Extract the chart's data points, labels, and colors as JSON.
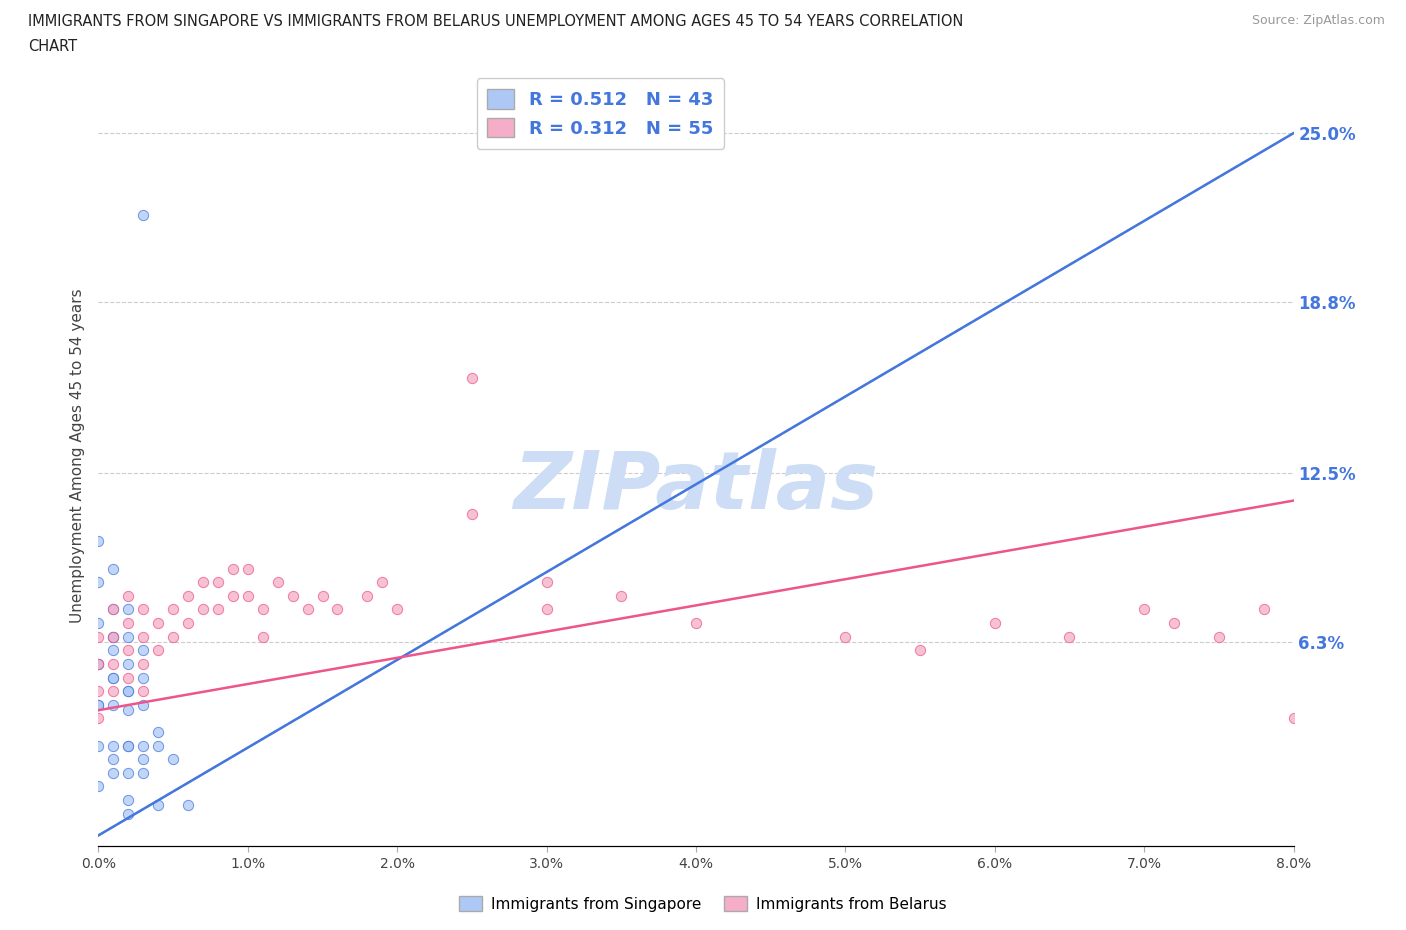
{
  "title_line1": "IMMIGRANTS FROM SINGAPORE VS IMMIGRANTS FROM BELARUS UNEMPLOYMENT AMONG AGES 45 TO 54 YEARS CORRELATION",
  "title_line2": "CHART",
  "source": "Source: ZipAtlas.com",
  "ylabel": "Unemployment Among Ages 45 to 54 years",
  "legend_label1": "Immigrants from Singapore",
  "legend_label2": "Immigrants from Belarus",
  "r1": 0.512,
  "n1": 43,
  "r2": 0.312,
  "n2": 55,
  "color1": "#adc8f5",
  "color2": "#f5adc8",
  "trendline1_color": "#4477dd",
  "trendline2_color": "#ee5588",
  "dashed_line_color": "#aabedd",
  "x_min": 0.0,
  "x_max": 0.08,
  "y_min": -0.012,
  "y_max": 0.275,
  "right_yticks": [
    0.063,
    0.125,
    0.188,
    0.25
  ],
  "right_yticklabels": [
    "6.3%",
    "12.5%",
    "18.8%",
    "25.0%"
  ],
  "watermark": "ZIPatlas",
  "watermark_color": "#ccddf5",
  "background_color": "#ffffff",
  "sg_trend_x": [
    0.0,
    0.08
  ],
  "sg_trend_y": [
    -0.008,
    0.25
  ],
  "bl_trend_x": [
    0.0,
    0.08
  ],
  "bl_trend_y": [
    0.038,
    0.115
  ],
  "sg_x": [
    0.003,
    0.0,
    0.001,
    0.0,
    0.0,
    0.001,
    0.0,
    0.001,
    0.002,
    0.001,
    0.0,
    0.002,
    0.001,
    0.003,
    0.002,
    0.001,
    0.0,
    0.003,
    0.002,
    0.001,
    0.0,
    0.002,
    0.001,
    0.003,
    0.002,
    0.004,
    0.002,
    0.001,
    0.0,
    0.003,
    0.002,
    0.004,
    0.003,
    0.001,
    0.005,
    0.002,
    0.003,
    0.001,
    0.0,
    0.002,
    0.004,
    0.006,
    0.002
  ],
  "sg_y": [
    0.22,
    0.055,
    0.065,
    0.1,
    0.07,
    0.09,
    0.055,
    0.075,
    0.075,
    0.06,
    0.085,
    0.065,
    0.05,
    0.06,
    0.055,
    0.065,
    0.04,
    0.05,
    0.045,
    0.05,
    0.04,
    0.045,
    0.04,
    0.04,
    0.038,
    0.03,
    0.025,
    0.025,
    0.025,
    0.025,
    0.025,
    0.025,
    0.02,
    0.02,
    0.02,
    0.015,
    0.015,
    0.015,
    0.01,
    0.005,
    0.003,
    0.003,
    0.0
  ],
  "bl_x": [
    0.0,
    0.0,
    0.0,
    0.0,
    0.001,
    0.001,
    0.001,
    0.001,
    0.002,
    0.002,
    0.002,
    0.002,
    0.003,
    0.003,
    0.003,
    0.003,
    0.004,
    0.004,
    0.005,
    0.005,
    0.006,
    0.006,
    0.007,
    0.007,
    0.008,
    0.008,
    0.009,
    0.009,
    0.01,
    0.01,
    0.011,
    0.011,
    0.012,
    0.013,
    0.014,
    0.015,
    0.016,
    0.018,
    0.019,
    0.02,
    0.025,
    0.025,
    0.03,
    0.03,
    0.035,
    0.04,
    0.05,
    0.055,
    0.06,
    0.065,
    0.07,
    0.072,
    0.075,
    0.078,
    0.08
  ],
  "bl_y": [
    0.065,
    0.055,
    0.045,
    0.035,
    0.075,
    0.065,
    0.055,
    0.045,
    0.08,
    0.07,
    0.06,
    0.05,
    0.075,
    0.065,
    0.055,
    0.045,
    0.07,
    0.06,
    0.075,
    0.065,
    0.08,
    0.07,
    0.085,
    0.075,
    0.085,
    0.075,
    0.09,
    0.08,
    0.09,
    0.08,
    0.075,
    0.065,
    0.085,
    0.08,
    0.075,
    0.08,
    0.075,
    0.08,
    0.085,
    0.075,
    0.16,
    0.11,
    0.085,
    0.075,
    0.08,
    0.07,
    0.065,
    0.06,
    0.07,
    0.065,
    0.075,
    0.07,
    0.065,
    0.075,
    0.035
  ]
}
